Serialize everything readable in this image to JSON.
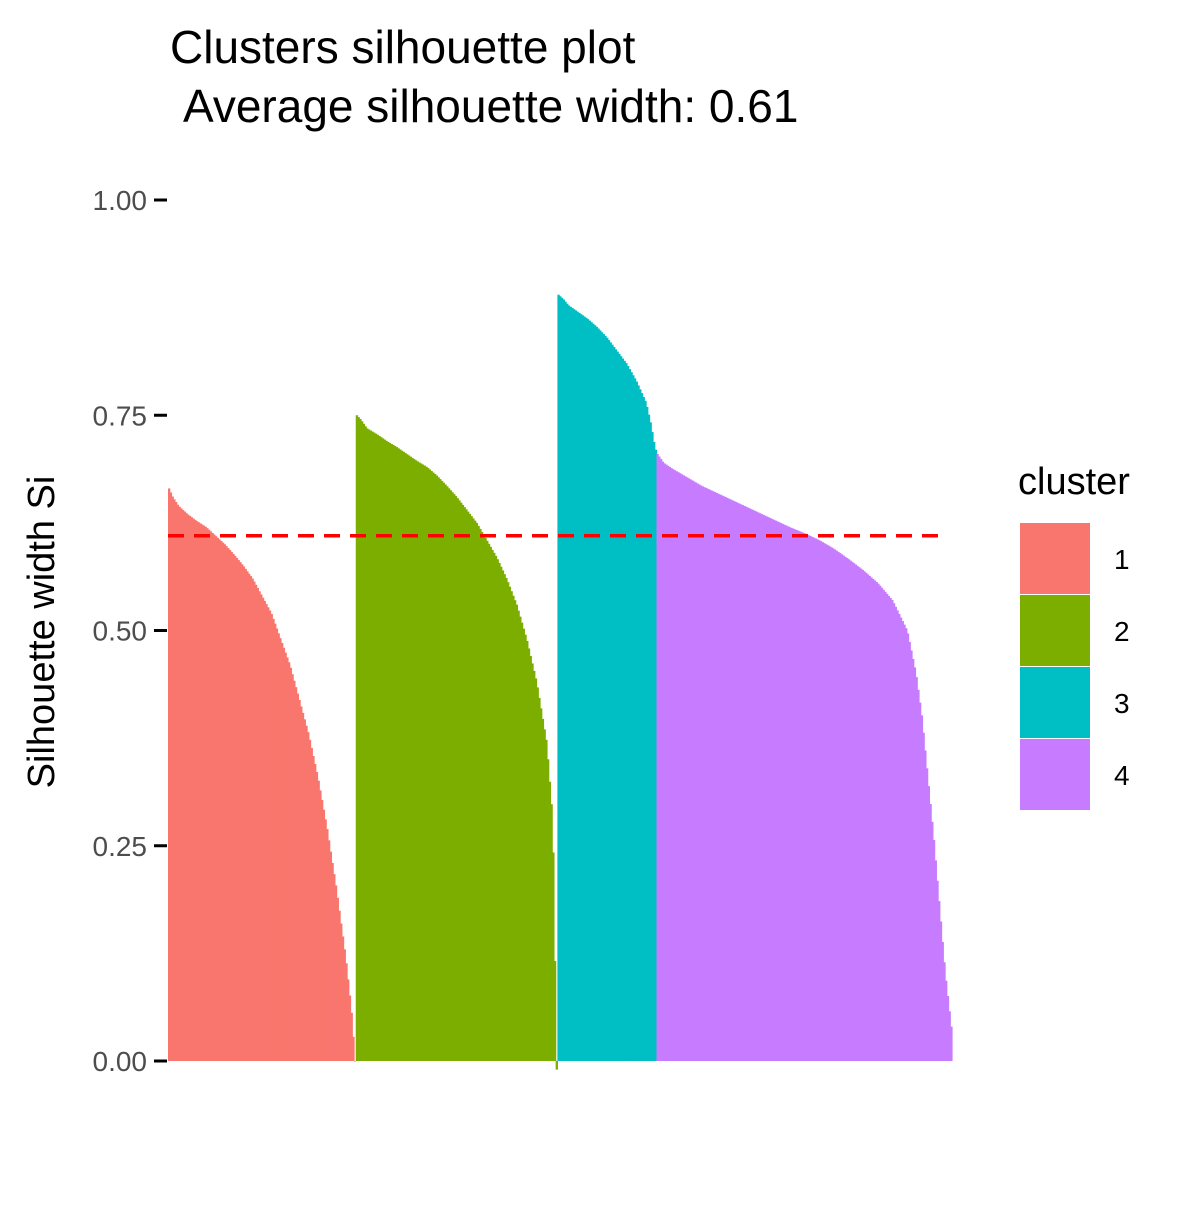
{
  "chart_data": {
    "type": "bar",
    "title": "Clusters silhouette plot",
    "subtitle": "Average silhouette width: 0.61",
    "xlabel": "",
    "ylabel": "Silhouette width Si",
    "ylim": [
      0,
      1
    ],
    "yticks": [
      "0.00",
      "0.25",
      "0.50",
      "0.75",
      "1.00"
    ],
    "ytick_values": [
      0,
      0.25,
      0.5,
      0.75,
      1.0
    ],
    "average_silhouette_width": 0.61,
    "reference_line": {
      "y": 0.61,
      "color": "#ff0000",
      "style": "dashed"
    },
    "grid": false,
    "legend": {
      "title": "cluster",
      "placement": "right"
    },
    "series": [
      {
        "name": "1",
        "color": "#F8766D",
        "n_observations": 108,
        "sorted_widths_profile": [
          [
            0.0,
            0.665
          ],
          [
            0.02,
            0.655
          ],
          [
            0.05,
            0.645
          ],
          [
            0.1,
            0.635
          ],
          [
            0.15,
            0.627
          ],
          [
            0.2,
            0.62
          ],
          [
            0.25,
            0.61
          ],
          [
            0.3,
            0.6
          ],
          [
            0.35,
            0.588
          ],
          [
            0.4,
            0.575
          ],
          [
            0.45,
            0.56
          ],
          [
            0.5,
            0.54
          ],
          [
            0.55,
            0.52
          ],
          [
            0.6,
            0.49
          ],
          [
            0.65,
            0.46
          ],
          [
            0.7,
            0.42
          ],
          [
            0.75,
            0.38
          ],
          [
            0.8,
            0.33
          ],
          [
            0.85,
            0.27
          ],
          [
            0.9,
            0.2
          ],
          [
            0.95,
            0.12
          ],
          [
            0.98,
            0.06
          ],
          [
            1.0,
            0.0
          ]
        ]
      },
      {
        "name": "2",
        "color": "#7CAE00",
        "n_observations": 116,
        "sorted_widths_profile": [
          [
            0.0,
            0.75
          ],
          [
            0.02,
            0.745
          ],
          [
            0.05,
            0.735
          ],
          [
            0.1,
            0.728
          ],
          [
            0.15,
            0.72
          ],
          [
            0.2,
            0.713
          ],
          [
            0.25,
            0.705
          ],
          [
            0.3,
            0.697
          ],
          [
            0.35,
            0.69
          ],
          [
            0.4,
            0.68
          ],
          [
            0.45,
            0.668
          ],
          [
            0.5,
            0.655
          ],
          [
            0.55,
            0.64
          ],
          [
            0.6,
            0.625
          ],
          [
            0.65,
            0.605
          ],
          [
            0.7,
            0.585
          ],
          [
            0.75,
            0.56
          ],
          [
            0.8,
            0.53
          ],
          [
            0.85,
            0.49
          ],
          [
            0.9,
            0.44
          ],
          [
            0.95,
            0.37
          ],
          [
            0.98,
            0.28
          ],
          [
            1.0,
            -0.01
          ]
        ]
      },
      {
        "name": "3",
        "color": "#00BFC4",
        "n_observations": 57,
        "sorted_widths_profile": [
          [
            0.0,
            0.89
          ],
          [
            0.05,
            0.885
          ],
          [
            0.1,
            0.878
          ],
          [
            0.2,
            0.87
          ],
          [
            0.3,
            0.862
          ],
          [
            0.4,
            0.852
          ],
          [
            0.5,
            0.84
          ],
          [
            0.6,
            0.825
          ],
          [
            0.7,
            0.81
          ],
          [
            0.8,
            0.79
          ],
          [
            0.9,
            0.765
          ],
          [
            0.95,
            0.74
          ],
          [
            0.98,
            0.72
          ],
          [
            1.0,
            0.71
          ]
        ]
      },
      {
        "name": "4",
        "color": "#C77CFF",
        "n_observations": 170,
        "sorted_widths_profile": [
          [
            0.0,
            0.705
          ],
          [
            0.02,
            0.695
          ],
          [
            0.05,
            0.688
          ],
          [
            0.1,
            0.678
          ],
          [
            0.15,
            0.668
          ],
          [
            0.2,
            0.66
          ],
          [
            0.25,
            0.652
          ],
          [
            0.3,
            0.644
          ],
          [
            0.35,
            0.636
          ],
          [
            0.4,
            0.628
          ],
          [
            0.45,
            0.62
          ],
          [
            0.5,
            0.613
          ],
          [
            0.55,
            0.605
          ],
          [
            0.6,
            0.595
          ],
          [
            0.65,
            0.583
          ],
          [
            0.7,
            0.57
          ],
          [
            0.75,
            0.555
          ],
          [
            0.8,
            0.535
          ],
          [
            0.85,
            0.5
          ],
          [
            0.88,
            0.45
          ],
          [
            0.9,
            0.4
          ],
          [
            0.92,
            0.33
          ],
          [
            0.94,
            0.26
          ],
          [
            0.96,
            0.18
          ],
          [
            0.98,
            0.1
          ],
          [
            1.0,
            0.04
          ]
        ]
      }
    ]
  }
}
